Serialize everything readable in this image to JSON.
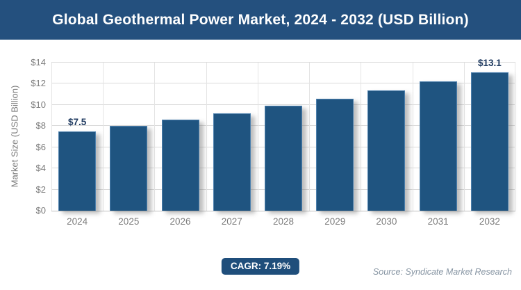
{
  "header": {
    "title": "Global Geothermal Power Market, 2024 - 2032 (USD Billion)"
  },
  "chart_data": {
    "type": "bar",
    "title": "Global Geothermal Power Market, 2024 - 2032 (USD Billion)",
    "categories": [
      "2024",
      "2025",
      "2026",
      "2027",
      "2028",
      "2029",
      "2030",
      "2031",
      "2032"
    ],
    "values": [
      7.5,
      8.0,
      8.6,
      9.2,
      9.9,
      10.6,
      11.4,
      12.2,
      13.1
    ],
    "value_labels": [
      {
        "index": 0,
        "text": "$7.5"
      },
      {
        "index": 8,
        "text": "$13.1"
      }
    ],
    "xlabel": "",
    "ylabel": "Market Size (USD Billion)",
    "ylim": [
      0,
      14
    ],
    "ytick_step": 2,
    "ytick_prefix": "$",
    "grid": "horizontal and vertical light gray gridlines",
    "legend": "none"
  },
  "footer": {
    "cagr_label": "CAGR: 7.19%",
    "source": "Source: Syndicate Market Research"
  },
  "colors": {
    "header_bg": "#24507E",
    "header_text": "#FFFFFF",
    "bar_fill": "#1F5480",
    "bar_border": "#4E81AE",
    "bar_value_label": "#1F3A60",
    "axis_label": "#7C7C7C",
    "gridline": "#DADADA",
    "vgridline": "#E4E4E4",
    "axis_line": "#C0C0C0",
    "badge_bg": "#1F4E7B",
    "badge_text": "#FFFFFF",
    "source_text": "#8795A3"
  }
}
